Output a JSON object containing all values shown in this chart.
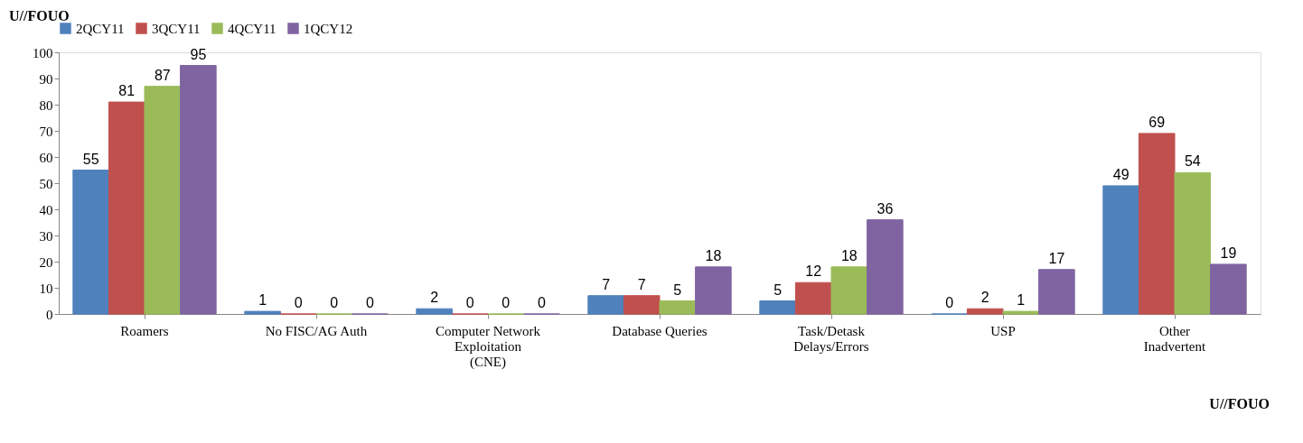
{
  "chart_data": {
    "type": "bar",
    "categories": [
      "Roamers",
      "No FISC/AG Auth",
      "Computer Network Exploitation (CNE)",
      "Database Queries",
      "Task/Detask Delays/Errors",
      "USP",
      "Other Inadvertent"
    ],
    "series": [
      {
        "name": "2QCY11",
        "color": "#4f81bd",
        "values": [
          55,
          1,
          2,
          7,
          5,
          0,
          49
        ]
      },
      {
        "name": "3QCY11",
        "color": "#c0504d",
        "values": [
          81,
          0,
          0,
          7,
          12,
          2,
          69
        ]
      },
      {
        "name": "4QCY11",
        "color": "#9bbb59",
        "values": [
          87,
          0,
          0,
          5,
          18,
          1,
          54
        ]
      },
      {
        "name": "1QCY12",
        "color": "#8064a2",
        "values": [
          95,
          0,
          0,
          18,
          36,
          17,
          19
        ]
      }
    ],
    "ylim": [
      0,
      100
    ],
    "yticks": [
      0,
      10,
      20,
      30,
      40,
      50,
      60,
      70,
      80,
      90,
      100
    ],
    "grid": false,
    "legend": "top",
    "data_labels": true,
    "annotations": [
      "U//FOUO",
      "U//FOUO"
    ]
  }
}
